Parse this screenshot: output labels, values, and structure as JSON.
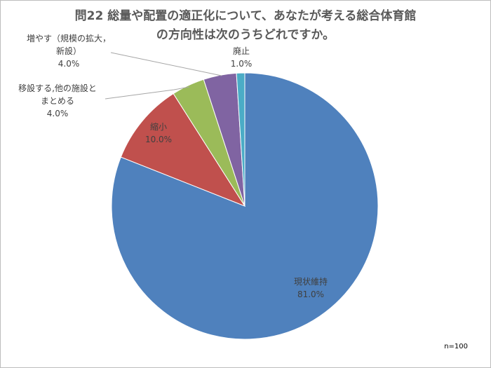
{
  "title_lines": [
    "問22 総量や配置の適正化について、あなたが考える総合体育館",
    "の方向性は次のうちどれですか。"
  ],
  "note": "n=100",
  "chart_data": {
    "type": "pie",
    "title": "問22 総量や配置の適正化について、あなたが考える総合体育館の方向性は次のうちどれですか。",
    "start": "12 o'clock, clockwise",
    "slices": [
      {
        "name": "現状維持",
        "label_lines": [
          "現状維持"
        ],
        "value": 81.0,
        "pct": "81.0%",
        "color": "#4f81bd"
      },
      {
        "name": "縮小",
        "label_lines": [
          "縮小"
        ],
        "value": 10.0,
        "pct": "10.0%",
        "color": "#c0504d"
      },
      {
        "name": "移設する,他の施設とまとめる",
        "label_lines": [
          "移設する,他の施設と",
          "まとめる"
        ],
        "value": 4.0,
        "pct": "4.0%",
        "color": "#9bbb59"
      },
      {
        "name": "増やす（規模の拡大，新設）",
        "label_lines": [
          "増やす（規模の拡大，",
          "新設）"
        ],
        "value": 4.0,
        "pct": "4.0%",
        "color": "#8064a2"
      },
      {
        "name": "廃止",
        "label_lines": [
          "廃止"
        ],
        "value": 1.0,
        "pct": "1.0%",
        "color": "#4bacc6"
      }
    ]
  }
}
